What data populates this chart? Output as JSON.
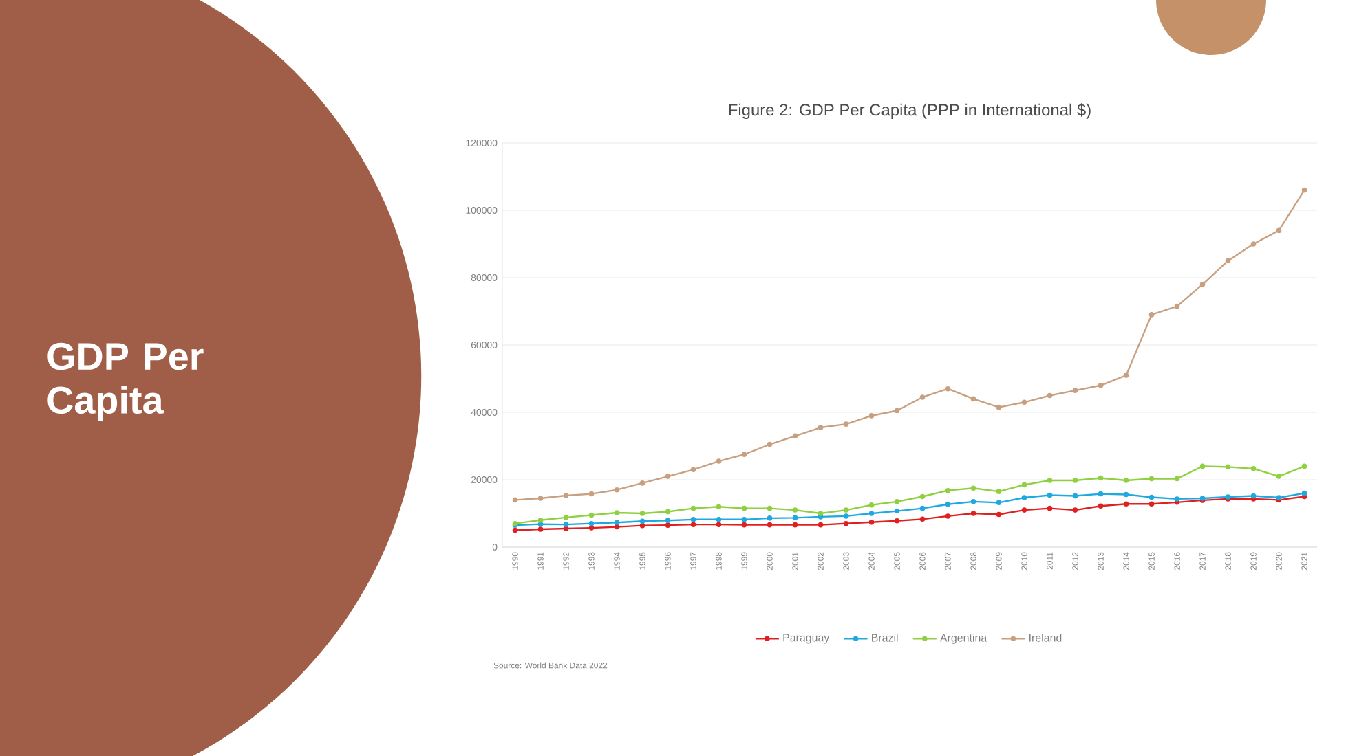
{
  "chart_data": {
    "type": "line",
    "title": "GDP Per Capita",
    "subtitle": "Figure 2: GDP Per Capita (PPP in International $)",
    "categories": [
      "1990",
      "1991",
      "1992",
      "1993",
      "1994",
      "1995",
      "1996",
      "1997",
      "1998",
      "1999",
      "2000",
      "2001",
      "2002",
      "2003",
      "2004",
      "2005",
      "2006",
      "2007",
      "2008",
      "2009",
      "2010",
      "2011",
      "2012",
      "2013",
      "2014",
      "2015",
      "2016",
      "2017",
      "2018",
      "2019",
      "2020",
      "2021"
    ],
    "series": [
      {
        "name": "Paraguay",
        "color": "#e02020",
        "values": [
          5000,
          5300,
          5500,
          5700,
          6000,
          6400,
          6500,
          6700,
          6700,
          6600,
          6600,
          6600,
          6600,
          7000,
          7400,
          7800,
          8300,
          9200,
          10000,
          9700,
          11000,
          11500,
          11000,
          12200,
          12800,
          12800,
          13300,
          13900,
          14300,
          14300,
          14000,
          15000
        ]
      },
      {
        "name": "Brazil",
        "color": "#20a8e0",
        "values": [
          6500,
          6800,
          6700,
          7000,
          7300,
          7700,
          7900,
          8200,
          8200,
          8200,
          8600,
          8700,
          9000,
          9200,
          10000,
          10700,
          11500,
          12700,
          13500,
          13200,
          14700,
          15400,
          15200,
          15800,
          15600,
          14800,
          14300,
          14500,
          14900,
          15200,
          14700,
          16000
        ]
      },
      {
        "name": "Argentina",
        "color": "#90d040",
        "values": [
          7000,
          8000,
          8800,
          9500,
          10200,
          10000,
          10500,
          11500,
          12000,
          11500,
          11500,
          11000,
          10000,
          11000,
          12500,
          13500,
          15000,
          16800,
          17500,
          16500,
          18500,
          19800,
          19800,
          20500,
          19800,
          20300,
          20300,
          24000,
          23800,
          23300,
          21000,
          24000
        ]
      },
      {
        "name": "Ireland",
        "color": "#c8a080",
        "values": [
          14000,
          14500,
          15300,
          15800,
          17000,
          19000,
          21000,
          23000,
          25500,
          27500,
          30500,
          33000,
          35500,
          36500,
          39000,
          40500,
          44500,
          47000,
          44000,
          41500,
          43000,
          45000,
          46500,
          48000,
          51000,
          69000,
          71500,
          78000,
          85000,
          90000,
          94000,
          106000
        ]
      }
    ],
    "ylim": [
      0,
      120000
    ],
    "yticks": [
      0,
      20000,
      40000,
      60000,
      80000,
      100000,
      120000
    ],
    "grid": "y",
    "legend": "bottom",
    "marker": "circle",
    "line_style": "solid",
    "annotations": [
      "Source: World Bank Data 2022"
    ]
  }
}
